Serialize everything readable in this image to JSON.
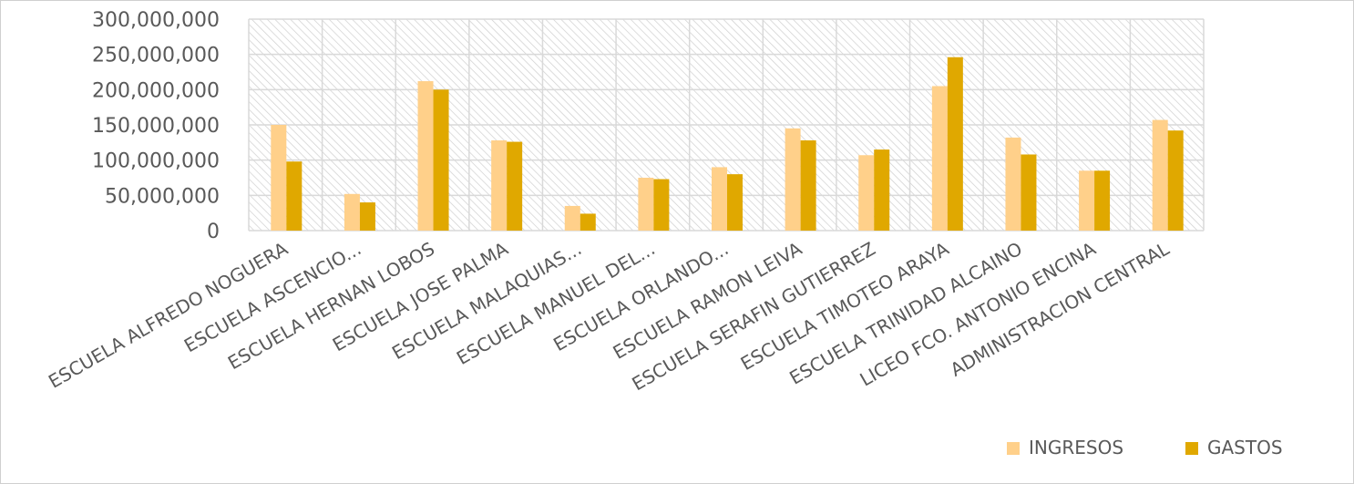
{
  "chart_data": {
    "type": "bar",
    "categories": [
      "ESCUELA ALFREDO NOGUERA",
      "ESCUELA ASCENCIO...",
      "ESCUELA HERNAN LOBOS",
      "ESCUELA JOSE PALMA",
      "ESCUELA MALAQUIAS...",
      "ESCUELA MANUEL DEL...",
      "ESCUELA ORLANDO...",
      "ESCUELA RAMON LEIVA",
      "ESCUELA SERAFIN GUTIERREZ",
      "ESCUELA TIMOTEO ARAYA",
      "ESCUELA TRINIDAD ALCAINO",
      "LICEO FCO. ANTONIO ENCINA",
      "ADMINISTRACION CENTRAL"
    ],
    "series": [
      {
        "name": "INGRESOS",
        "color": "#FFD08A",
        "values": [
          150000000,
          52000000,
          212000000,
          128000000,
          35000000,
          75000000,
          90000000,
          145000000,
          107000000,
          205000000,
          132000000,
          85000000,
          157000000
        ]
      },
      {
        "name": "GASTOS",
        "color": "#E0A800",
        "values": [
          98000000,
          40000000,
          200000000,
          126000000,
          24000000,
          73000000,
          80000000,
          128000000,
          115000000,
          246000000,
          108000000,
          85000000,
          142000000
        ]
      }
    ],
    "y_ticks": [
      "0",
      "50,000,000",
      "100,000,000",
      "150,000,000",
      "200,000,000",
      "250,000,000",
      "300,000,000"
    ],
    "ylim": [
      0,
      300000000
    ],
    "grid": true,
    "plot_background": "hatched",
    "legend_position": "bottom-right"
  }
}
